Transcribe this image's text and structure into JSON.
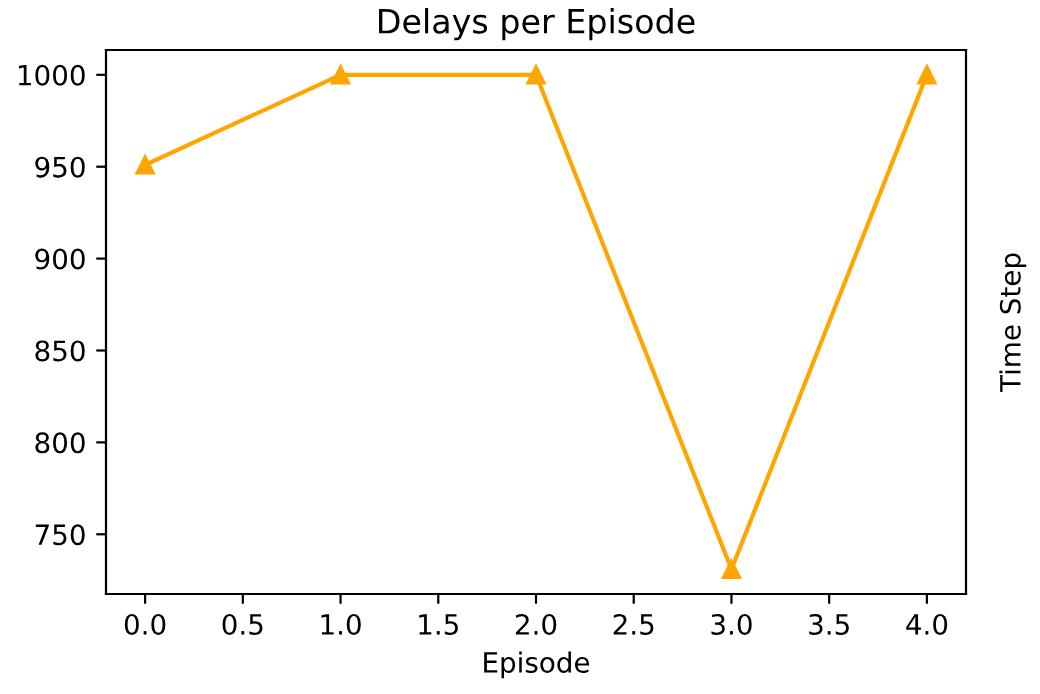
{
  "chart_data": {
    "type": "line",
    "title": "Delays per Episode",
    "xlabel": "Episode",
    "ylabel": "Time Step",
    "x": [
      0,
      1,
      2,
      3,
      4
    ],
    "series": [
      {
        "color": "#ffa500",
        "values": [
          951,
          1000,
          1000,
          731,
          1000
        ]
      }
    ],
    "marker": "triangle",
    "line_style": "solid",
    "xlim": [
      -0.2,
      4.2
    ],
    "xticks": [
      {
        "value": 0,
        "label": "0.0"
      },
      0.5,
      {
        "value": 1,
        "label": "1.0"
      },
      1.5,
      {
        "value": 2,
        "label": "2.0"
      },
      2.5,
      {
        "value": 3,
        "label": "3.0"
      },
      3.5,
      {
        "value": 4,
        "label": "4.0"
      }
    ],
    "ylim": [
      717.5,
      1013.5
    ],
    "yticks": [
      750,
      800,
      850,
      900,
      950,
      1000
    ],
    "grid": false,
    "legend": false
  }
}
